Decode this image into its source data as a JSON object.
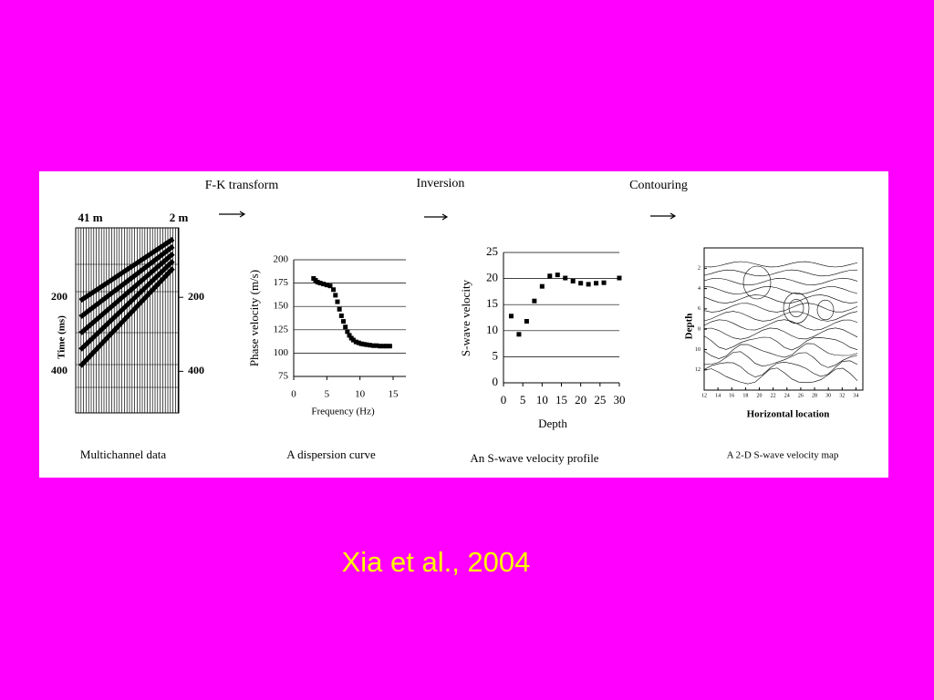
{
  "steps": [
    "F-K transform",
    "Inversion",
    "Contouring"
  ],
  "captions": [
    "Multichannel data",
    "A dispersion curve",
    "An S-wave velocity profile",
    "A 2-D S-wave velocity map"
  ],
  "citation": "Xia et al., 2004",
  "seismic": {
    "left_label": "41 m",
    "right_label": "2 m",
    "axis_label": "Time (ms)",
    "ticks": [
      200,
      400
    ]
  },
  "chart_data": [
    {
      "type": "scatter",
      "xlabel": "Frequency (Hz)",
      "ylabel": "Phase velocity (m/s)",
      "x": [
        3,
        3.3,
        3.6,
        4,
        4.5,
        5,
        5.5,
        6,
        6.3,
        6.6,
        6.9,
        7.2,
        7.5,
        7.8,
        8.1,
        8.4,
        8.7,
        9,
        9.4,
        9.8,
        10.2,
        10.6,
        11,
        11.5,
        12,
        12.5,
        13,
        13.5,
        14,
        14.5
      ],
      "values": [
        180,
        178,
        176,
        175,
        174,
        173,
        172,
        168,
        162,
        155,
        147,
        140,
        134,
        128,
        123,
        119,
        116,
        114,
        112,
        111,
        110,
        109.5,
        109,
        108.5,
        108,
        108,
        107.5,
        107.5,
        107.5,
        107.5
      ],
      "color": "#000000",
      "xlim": [
        0,
        15
      ],
      "xticks": [
        0,
        5,
        10,
        15
      ],
      "ylim": [
        75,
        200
      ],
      "yticks": [
        75,
        100,
        125,
        150,
        175,
        200
      ],
      "grid": true
    },
    {
      "type": "scatter",
      "xlabel": "Depth",
      "ylabel": "S-wave velocity",
      "x": [
        2,
        4,
        6,
        8,
        10,
        12,
        14,
        16,
        18,
        20,
        22,
        24,
        26,
        30
      ],
      "values": [
        12.8,
        9.3,
        11.8,
        15.7,
        18.5,
        20.5,
        20.7,
        20.1,
        19.5,
        19.1,
        18.9,
        19.1,
        19.2,
        20.1
      ],
      "color": "#000000",
      "xlim": [
        0,
        30
      ],
      "xticks": [
        0,
        5,
        10,
        15,
        20,
        25,
        30
      ],
      "ylim": [
        0,
        25
      ],
      "yticks": [
        0,
        5,
        10,
        15,
        20,
        25
      ],
      "grid": true
    }
  ],
  "contour_map": {
    "xlabel": "Horizontal location",
    "ylabel": "Depth",
    "xticks": [
      12,
      14,
      16,
      18,
      20,
      22,
      24,
      26,
      28,
      30,
      32,
      34
    ],
    "yticks": [
      2,
      4,
      6,
      8,
      10,
      12
    ]
  }
}
